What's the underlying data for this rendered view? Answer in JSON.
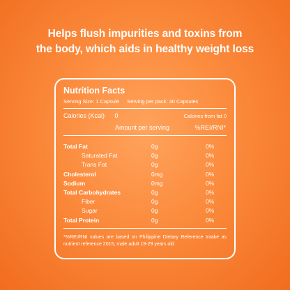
{
  "headline": {
    "line1": "Helps flush impurities and toxins from",
    "line2": "the body, which aids in healthy weight loss"
  },
  "nutrition": {
    "title": "Nutrition Facts",
    "serving_size": "Serving Size: 1 Capsule",
    "serving_per_pack": "Serving per pack: 30 Capsules",
    "calories_label": "Calories (Kcal)",
    "calories_value": "0",
    "calories_from_fat": "Calories from fat 0",
    "amount_header": "Amount per serving",
    "rni_header": "%REI/RNI*",
    "rows": [
      {
        "name": "Total Fat",
        "amount": "0g",
        "percent": "0%"
      },
      {
        "name": "Saturated Fat",
        "amount": "0g",
        "percent": "0%"
      },
      {
        "name": "Trans Fat",
        "amount": "0g",
        "percent": "0%"
      },
      {
        "name": "Cholesterol",
        "amount": "0mg",
        "percent": "0%"
      },
      {
        "name": "Sodium",
        "amount": "0mg",
        "percent": "0%"
      },
      {
        "name": "Total Carbohydrates",
        "amount": "0g",
        "percent": "0%"
      },
      {
        "name": "Fiber",
        "amount": "0g",
        "percent": "0%"
      },
      {
        "name": "Sugar",
        "amount": "0g",
        "percent": "0%"
      },
      {
        "name": "Total Protein",
        "amount": "0g",
        "percent": "0%"
      }
    ],
    "footnote": "*%REI/RNI values are based on Philippine Dietary Reference Intake as nutrient reference 2015, male adult 19-29 years old"
  }
}
